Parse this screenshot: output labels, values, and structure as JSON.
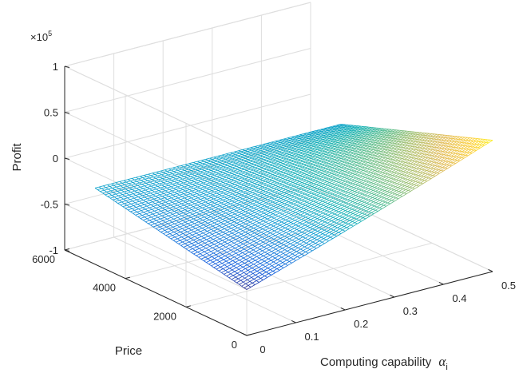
{
  "chart_data": {
    "type": "surface",
    "title": "",
    "xlabel": "Computing capability",
    "xlabel_symbol": "α",
    "xlabel_subscript": "i",
    "ylabel": "Price",
    "zlabel": "Profit",
    "z_exponent_label": "×10",
    "z_exponent_power": "5",
    "xlim": [
      0,
      0.5
    ],
    "ylim": [
      0,
      6000
    ],
    "zlim": [
      -1,
      1
    ],
    "xticks": [
      "0",
      "0.1",
      "0.2",
      "0.3",
      "0.4",
      "0.5"
    ],
    "yticks": [
      "0",
      "2000",
      "4000",
      "6000"
    ],
    "zticks": [
      "-1",
      "-0.5",
      "0",
      "0.5",
      "1"
    ],
    "grid": true,
    "colormap": "parula",
    "surface": {
      "x_range": [
        0,
        0.5
      ],
      "y_range": [
        0,
        5000
      ],
      "mesh_rows": 60,
      "mesh_cols": 60,
      "corner_values_x1e5": {
        "x0_y0": -0.5,
        "x0.5_y0": 0.43,
        "x0_y5000": -0.17,
        "x0.5_y5000": -0.17
      }
    }
  }
}
